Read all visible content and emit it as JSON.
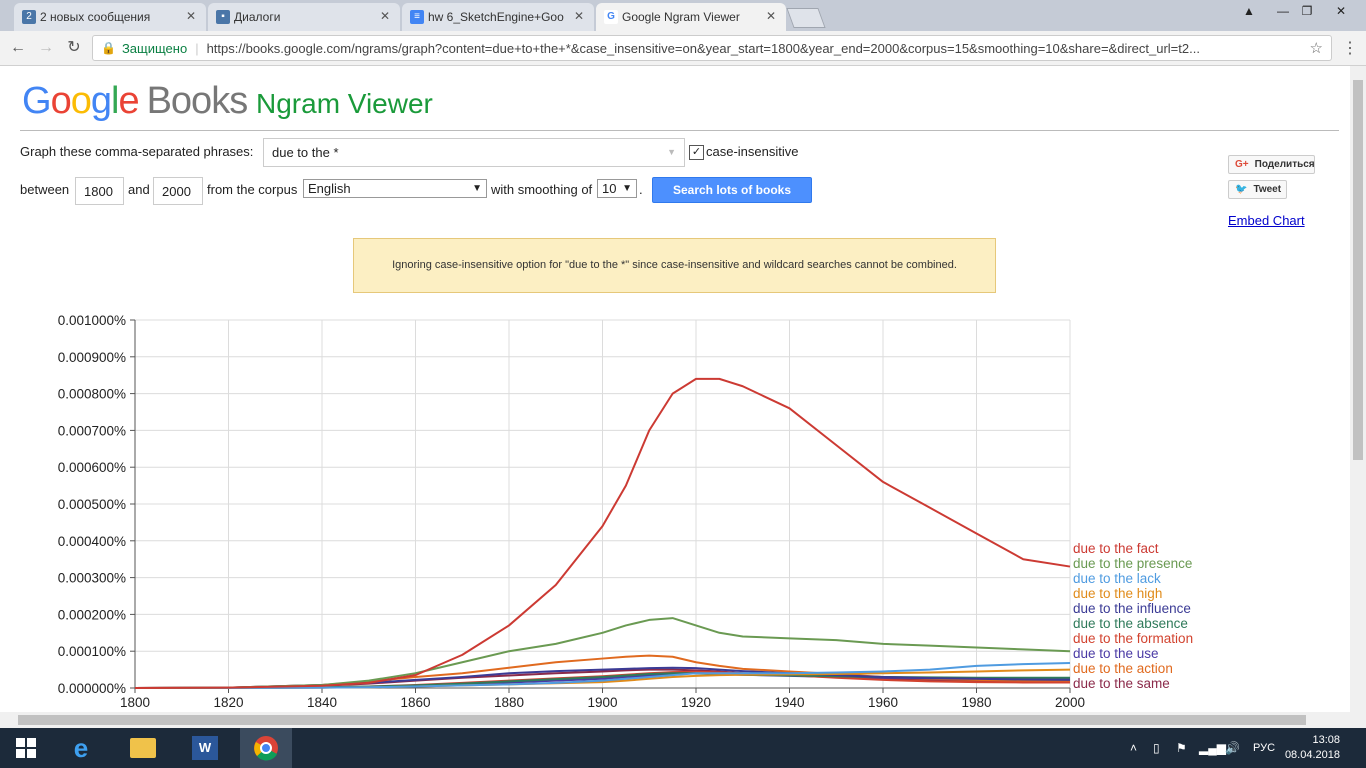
{
  "browser": {
    "tabs": [
      {
        "title": "2 новых сообщения",
        "badge": "2",
        "active": false
      },
      {
        "title": "Диалоги",
        "active": false
      },
      {
        "title": "hw 6_SketchEngine+Goo",
        "active": false
      },
      {
        "title": "Google Ngram Viewer",
        "active": true
      }
    ],
    "secure_label": "Защищено",
    "url": "https://books.google.com/ngrams/graph?content=due+to+the+*&case_insensitive=on&year_start=1800&year_end=2000&corpus=15&smoothing=10&share=&direct_url=t2..."
  },
  "page": {
    "logo_google": "Google",
    "logo_books": "Books",
    "title": "Ngram Viewer",
    "phrases_label": "Graph these comma-separated phrases:",
    "phrase_value": "due to the *",
    "case_insensitive_label": "case-insensitive",
    "between_label": "between",
    "year_start": "1800",
    "and_label": "and",
    "year_end": "2000",
    "corpus_label": "from the corpus",
    "corpus_value": "English",
    "smoothing_label": "with smoothing of",
    "smoothing_value": "10",
    "period": ".",
    "search_button": "Search lots of books",
    "share_button": "Поделиться",
    "tweet_button": "Tweet",
    "embed_link": "Embed Chart",
    "notice": "Ignoring case-insensitive option for \"due to the *\" since case-insensitive and wildcard searches cannot be combined."
  },
  "chart_data": {
    "type": "line",
    "xlim": [
      1800,
      2000
    ],
    "ylim": [
      0,
      0.001
    ],
    "x_ticks": [
      1800,
      1820,
      1840,
      1860,
      1880,
      1900,
      1920,
      1940,
      1960,
      1980,
      2000
    ],
    "y_ticks": [
      "0.000000%",
      "0.000100%",
      "0.000200%",
      "0.000300%",
      "0.000400%",
      "0.000500%",
      "0.000600%",
      "0.000700%",
      "0.000800%",
      "0.000900%",
      "0.001000%"
    ],
    "grid": true,
    "legend_placement": "right",
    "x": [
      1800,
      1820,
      1840,
      1850,
      1860,
      1870,
      1880,
      1890,
      1900,
      1905,
      1910,
      1915,
      1920,
      1925,
      1930,
      1940,
      1950,
      1960,
      1970,
      1980,
      1990,
      2000
    ],
    "series": [
      {
        "name": "due to the fact",
        "color": "#cc3a33",
        "values": [
          0,
          1e-06,
          6e-06,
          1.4e-05,
          3.5e-05,
          9e-05,
          0.00017,
          0.00028,
          0.00044,
          0.00055,
          0.0007,
          0.0008,
          0.00084,
          0.00084,
          0.00082,
          0.00076,
          0.00066,
          0.00056,
          0.00049,
          0.00042,
          0.00035,
          0.00033
        ]
      },
      {
        "name": "due to the presence",
        "color": "#6a9a52",
        "values": [
          0,
          1e-06,
          8e-06,
          2e-05,
          4e-05,
          7e-05,
          0.0001,
          0.00012,
          0.00015,
          0.00017,
          0.000185,
          0.00019,
          0.00017,
          0.00015,
          0.00014,
          0.000135,
          0.00013,
          0.00012,
          0.000115,
          0.00011,
          0.000105,
          0.0001
        ]
      },
      {
        "name": "due to the lack",
        "color": "#4f9be0",
        "values": [
          0,
          0,
          1e-06,
          2e-06,
          4e-06,
          7e-06,
          1e-05,
          1.4e-05,
          2e-05,
          2.5e-05,
          3e-05,
          3.5e-05,
          4e-05,
          4e-05,
          4e-05,
          4e-05,
          4.2e-05,
          4.5e-05,
          5e-05,
          6e-05,
          6.5e-05,
          6.8e-05
        ]
      },
      {
        "name": "due to the high",
        "color": "#e08b1a",
        "values": [
          0,
          0,
          1e-06,
          2e-06,
          4e-06,
          7e-06,
          1e-05,
          1.3e-05,
          1.6e-05,
          2e-05,
          2.5e-05,
          3e-05,
          3.3e-05,
          3.5e-05,
          3.6e-05,
          3.7e-05,
          3.8e-05,
          4e-05,
          4.2e-05,
          4.5e-05,
          4.8e-05,
          5e-05
        ]
      },
      {
        "name": "due to the influence",
        "color": "#3b3b95",
        "values": [
          0,
          1e-06,
          8e-06,
          1.4e-05,
          2.2e-05,
          3e-05,
          4e-05,
          4.6e-05,
          5e-05,
          5.2e-05,
          5.4e-05,
          5.5e-05,
          5.4e-05,
          5e-05,
          4.6e-05,
          4e-05,
          3.5e-05,
          3e-05,
          2.7e-05,
          2.5e-05,
          2.3e-05,
          2.2e-05
        ]
      },
      {
        "name": "due to the absence",
        "color": "#2f7a5a",
        "values": [
          0,
          0,
          2e-06,
          4e-06,
          7e-06,
          1.2e-05,
          1.8e-05,
          2.4e-05,
          3e-05,
          3.4e-05,
          3.8e-05,
          4e-05,
          4e-05,
          3.8e-05,
          3.6e-05,
          3.4e-05,
          3.2e-05,
          3e-05,
          2.9e-05,
          2.8e-05,
          2.8e-05,
          2.8e-05
        ]
      },
      {
        "name": "due to the formation",
        "color": "#d2432f",
        "values": [
          0,
          0,
          2e-06,
          4e-06,
          8e-06,
          1.4e-05,
          2e-05,
          2.6e-05,
          3.2e-05,
          3.6e-05,
          4e-05,
          4.3e-05,
          4.4e-05,
          4.2e-05,
          4e-05,
          3.5e-05,
          2.8e-05,
          2.2e-05,
          1.8e-05,
          1.6e-05,
          1.5e-05,
          1.5e-05
        ]
      },
      {
        "name": "due to the use",
        "color": "#4a3aa5",
        "values": [
          0,
          0,
          1e-06,
          3e-06,
          6e-06,
          1e-05,
          1.5e-05,
          2e-05,
          2.5e-05,
          3e-05,
          3.4e-05,
          3.8e-05,
          4e-05,
          3.8e-05,
          3.6e-05,
          3.3e-05,
          3e-05,
          2.8e-05,
          2.7e-05,
          2.6e-05,
          2.5e-05,
          2.4e-05
        ]
      },
      {
        "name": "due to the action",
        "color": "#e06a1f",
        "values": [
          0,
          1e-06,
          8e-06,
          1.8e-05,
          3e-05,
          4e-05,
          5.5e-05,
          7e-05,
          8e-05,
          8.5e-05,
          8.8e-05,
          8.5e-05,
          7e-05,
          6e-05,
          5.2e-05,
          4.5e-05,
          3.8e-05,
          3e-05,
          2.5e-05,
          2.2e-05,
          1.9e-05,
          1.8e-05
        ]
      },
      {
        "name": "due to the same",
        "color": "#8b2a4a",
        "values": [
          0,
          1e-06,
          6e-06,
          1.2e-05,
          2e-05,
          2.8e-05,
          3.4e-05,
          4e-05,
          4.5e-05,
          4.8e-05,
          5e-05,
          5e-05,
          4.8e-05,
          4.5e-05,
          4e-05,
          3.5e-05,
          3e-05,
          2.6e-05,
          2.2e-05,
          2e-05,
          1.8e-05,
          1.7e-05
        ]
      }
    ]
  },
  "taskbar": {
    "lang": "РУС",
    "time": "13:08",
    "date": "08.04.2018"
  }
}
